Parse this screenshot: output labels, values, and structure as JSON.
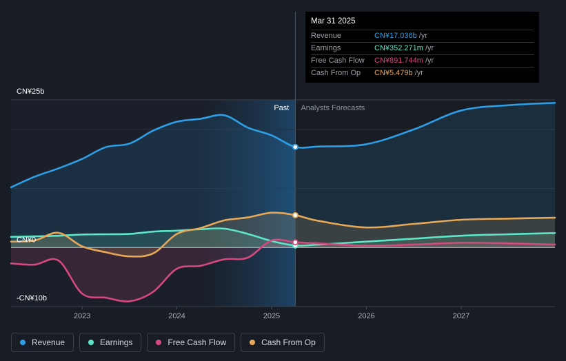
{
  "chart_data": {
    "type": "area",
    "x_range": [
      2022.25,
      2027.99
    ],
    "ylim": [
      -10,
      25
    ],
    "y_unit": "CN¥ billions",
    "y_ticks": [
      {
        "value": 25,
        "label": "CN¥25b"
      },
      {
        "value": 0,
        "label": "CN¥0"
      },
      {
        "value": -10,
        "label": "-CN¥10b"
      }
    ],
    "x_ticks": [
      {
        "value": 2023,
        "label": "2023"
      },
      {
        "value": 2024,
        "label": "2024"
      },
      {
        "value": 2025,
        "label": "2025"
      },
      {
        "value": 2026,
        "label": "2026"
      },
      {
        "value": 2027,
        "label": "2027"
      }
    ],
    "divider_x": 2025.25,
    "past_label": "Past",
    "forecast_label": "Analysts Forecasts",
    "series": [
      {
        "name": "Revenue",
        "color": "#2e9fe6",
        "points": [
          [
            2022.25,
            10.2
          ],
          [
            2022.5,
            12
          ],
          [
            2022.75,
            13.4
          ],
          [
            2023,
            15
          ],
          [
            2023.25,
            17
          ],
          [
            2023.5,
            17.6
          ],
          [
            2023.75,
            19.8
          ],
          [
            2024,
            21.3
          ],
          [
            2024.25,
            21.8
          ],
          [
            2024.5,
            22.4
          ],
          [
            2024.75,
            20.3
          ],
          [
            2025,
            19
          ],
          [
            2025.25,
            17.036
          ],
          [
            2025.5,
            17.1
          ],
          [
            2026,
            17.5
          ],
          [
            2026.5,
            20
          ],
          [
            2027,
            23.2
          ],
          [
            2027.5,
            24.1
          ],
          [
            2027.99,
            24.5
          ]
        ]
      },
      {
        "name": "Earnings",
        "color": "#5ee6c8",
        "points": [
          [
            2022.25,
            1.8
          ],
          [
            2022.5,
            1.9
          ],
          [
            2022.75,
            2
          ],
          [
            2023,
            2.2
          ],
          [
            2023.25,
            2.25
          ],
          [
            2023.5,
            2.3
          ],
          [
            2023.75,
            2.7
          ],
          [
            2024,
            2.85
          ],
          [
            2024.25,
            3.1
          ],
          [
            2024.5,
            3.2
          ],
          [
            2024.75,
            2.3
          ],
          [
            2025,
            1.1
          ],
          [
            2025.25,
            0.352
          ],
          [
            2025.5,
            0.5
          ],
          [
            2026,
            1
          ],
          [
            2026.5,
            1.5
          ],
          [
            2027,
            2
          ],
          [
            2027.5,
            2.25
          ],
          [
            2027.99,
            2.45
          ]
        ]
      },
      {
        "name": "Free Cash Flow",
        "color": "#d6497f",
        "points": [
          [
            2022.25,
            -2.7
          ],
          [
            2022.5,
            -2.9
          ],
          [
            2022.75,
            -2.2
          ],
          [
            2023,
            -7.8
          ],
          [
            2023.25,
            -8.5
          ],
          [
            2023.5,
            -9.1
          ],
          [
            2023.75,
            -7.5
          ],
          [
            2024,
            -3.6
          ],
          [
            2024.25,
            -3.1
          ],
          [
            2024.5,
            -2
          ],
          [
            2024.75,
            -1.7
          ],
          [
            2025,
            1.2
          ],
          [
            2025.25,
            0.892
          ],
          [
            2025.5,
            0.7
          ],
          [
            2026,
            0.3
          ],
          [
            2026.5,
            0.5
          ],
          [
            2027,
            0.8
          ],
          [
            2027.5,
            0.7
          ],
          [
            2027.99,
            0.5
          ]
        ]
      },
      {
        "name": "Cash From Op",
        "color": "#e7a958",
        "points": [
          [
            2022.25,
            1
          ],
          [
            2022.5,
            1.2
          ],
          [
            2022.75,
            2.5
          ],
          [
            2023,
            0.2
          ],
          [
            2023.25,
            -0.8
          ],
          [
            2023.5,
            -1.5
          ],
          [
            2023.75,
            -1
          ],
          [
            2024,
            2.3
          ],
          [
            2024.25,
            3.3
          ],
          [
            2024.5,
            4.6
          ],
          [
            2024.75,
            5.1
          ],
          [
            2025,
            5.9
          ],
          [
            2025.25,
            5.479
          ],
          [
            2025.5,
            4.5
          ],
          [
            2026,
            3.4
          ],
          [
            2026.5,
            4
          ],
          [
            2027,
            4.7
          ],
          [
            2027.5,
            4.9
          ],
          [
            2027.99,
            5.05
          ]
        ]
      }
    ]
  },
  "tooltip": {
    "date": "Mar 31 2025",
    "rows": [
      {
        "label": "Revenue",
        "value": "CN¥17.036b",
        "unit": "/yr",
        "color": "#2e9fe6"
      },
      {
        "label": "Earnings",
        "value": "CN¥352.271m",
        "unit": "/yr",
        "color": "#5ee6c8"
      },
      {
        "label": "Free Cash Flow",
        "value": "CN¥891.744m",
        "unit": "/yr",
        "color": "#d6497f"
      },
      {
        "label": "Cash From Op",
        "value": "CN¥5.479b",
        "unit": "/yr",
        "color": "#e7a958"
      }
    ]
  },
  "legend": [
    {
      "label": "Revenue",
      "color": "#2e9fe6"
    },
    {
      "label": "Earnings",
      "color": "#5ee6c8"
    },
    {
      "label": "Free Cash Flow",
      "color": "#d6497f"
    },
    {
      "label": "Cash From Op",
      "color": "#e7a958"
    }
  ]
}
